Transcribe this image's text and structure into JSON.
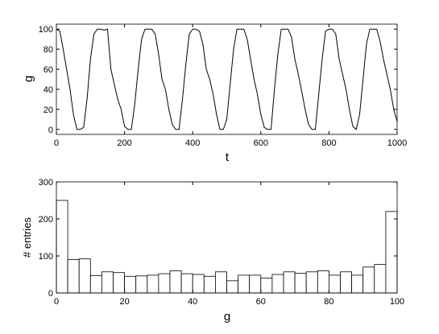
{
  "chart_data": [
    {
      "type": "line",
      "xlabel": "t",
      "ylabel": "g",
      "x": [
        0,
        10,
        20,
        30,
        40,
        50,
        60,
        70,
        80,
        90,
        100,
        110,
        120,
        130,
        140,
        150,
        160,
        170,
        180,
        190,
        200,
        210,
        220,
        230,
        240,
        250,
        260,
        270,
        280,
        290,
        300,
        310,
        320,
        330,
        340,
        350,
        360,
        370,
        380,
        390,
        400,
        410,
        420,
        430,
        440,
        450,
        460,
        470,
        480,
        490,
        500,
        510,
        520,
        530,
        540,
        550,
        560,
        570,
        580,
        590,
        600,
        610,
        620,
        630,
        640,
        650,
        660,
        670,
        680,
        690,
        700,
        710,
        720,
        730,
        740,
        750,
        760,
        770,
        780,
        790,
        800,
        810,
        820,
        830,
        840,
        850,
        860,
        870,
        880,
        890,
        900,
        910,
        920,
        930,
        940,
        950,
        960,
        970,
        980,
        990,
        1000
      ],
      "series": [
        {
          "name": "g",
          "color": "#000000",
          "values": [
            100,
            98,
            80,
            60,
            40,
            15,
            0,
            0,
            2,
            30,
            70,
            95,
            100,
            100,
            99,
            100,
            60,
            45,
            30,
            20,
            3,
            0,
            0,
            25,
            60,
            90,
            100,
            100,
            100,
            95,
            75,
            50,
            40,
            20,
            5,
            0,
            0,
            30,
            65,
            95,
            100,
            100,
            98,
            85,
            60,
            50,
            35,
            15,
            0,
            0,
            10,
            45,
            80,
            100,
            100,
            100,
            90,
            70,
            50,
            35,
            15,
            2,
            0,
            0,
            40,
            75,
            100,
            100,
            100,
            92,
            70,
            55,
            38,
            20,
            5,
            0,
            0,
            35,
            70,
            98,
            100,
            100,
            95,
            70,
            55,
            40,
            20,
            3,
            0,
            15,
            50,
            85,
            100,
            100,
            100,
            88,
            70,
            55,
            40,
            20,
            8
          ]
        }
      ],
      "xlim": [
        0,
        1000
      ],
      "xticks": [
        0,
        200,
        400,
        600,
        800,
        1000
      ],
      "ylim": [
        -5,
        105
      ],
      "yticks": [
        0,
        20,
        40,
        60,
        80,
        100
      ]
    },
    {
      "type": "histogram",
      "xlabel": "g",
      "ylabel": "# entries",
      "bins": [
        0,
        3.33,
        6.67,
        10,
        13.33,
        16.67,
        20,
        23.33,
        26.67,
        30,
        33.33,
        36.67,
        40,
        43.33,
        46.67,
        50,
        53.33,
        56.67,
        60,
        63.33,
        66.67,
        70,
        73.33,
        76.67,
        80,
        83.33,
        86.67,
        90,
        93.33,
        96.67,
        100
      ],
      "values": [
        250,
        90,
        92,
        47,
        57,
        55,
        45,
        46,
        48,
        52,
        60,
        52,
        50,
        45,
        57,
        33,
        48,
        48,
        40,
        50,
        57,
        53,
        57,
        60,
        48,
        57,
        48,
        70,
        77,
        220
      ],
      "color": "#ffffff",
      "xlim": [
        0,
        100
      ],
      "xticks": [
        0,
        20,
        40,
        60,
        80,
        100
      ],
      "ylim": [
        0,
        300
      ],
      "yticks": [
        0,
        100,
        200,
        300
      ]
    }
  ]
}
